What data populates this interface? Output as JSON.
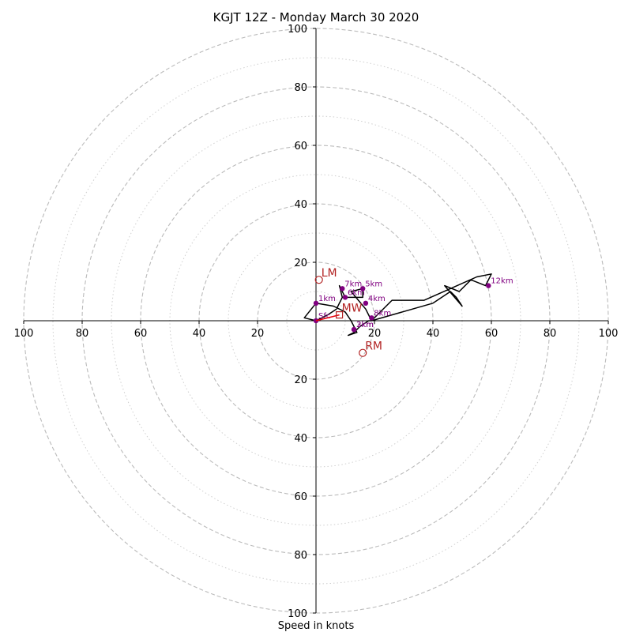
{
  "chart_data": {
    "type": "line",
    "title": "KGJT 12Z - Monday March 30 2020",
    "xlabel": "Speed in knots",
    "xlim": [
      -100,
      100
    ],
    "ylim": [
      -100,
      100
    ],
    "major_rings": [
      20,
      40,
      60,
      80,
      100
    ],
    "minor_rings": [
      10,
      30,
      50,
      70,
      90
    ],
    "tick_labels": {
      "x": [
        "100",
        "80",
        "60",
        "40",
        "20",
        "20",
        "40",
        "60",
        "80",
        "100"
      ],
      "y": [
        "100",
        "80",
        "60",
        "40",
        "20",
        "20",
        "40",
        "60",
        "80",
        "100"
      ]
    },
    "colors": {
      "hodograph": "#000000",
      "height_points": "#800080",
      "motion": "#b22222",
      "mean_wind_vector": "#e8000b",
      "grid": "#bbbbbb"
    },
    "hodograph": [
      [
        0,
        0
      ],
      [
        -4,
        1
      ],
      [
        0,
        6
      ],
      [
        6,
        5
      ],
      [
        10,
        3
      ],
      [
        12,
        0
      ],
      [
        14,
        -4
      ],
      [
        11,
        -5
      ],
      [
        13,
        -4
      ],
      [
        15,
        -2
      ],
      [
        18,
        0
      ],
      [
        19,
        0
      ],
      [
        22,
        3
      ],
      [
        26,
        7
      ],
      [
        33,
        7
      ],
      [
        37,
        7
      ],
      [
        46,
        11
      ],
      [
        55,
        15
      ],
      [
        60,
        16
      ],
      [
        58,
        12
      ],
      [
        53,
        14
      ],
      [
        49,
        10
      ],
      [
        44,
        12
      ],
      [
        50,
        5
      ],
      [
        48,
        8
      ],
      [
        46,
        10
      ],
      [
        40,
        6
      ],
      [
        19,
        0
      ],
      [
        17,
        4
      ],
      [
        12,
        10
      ],
      [
        16,
        11
      ],
      [
        16,
        8
      ],
      [
        10,
        8
      ],
      [
        8,
        12
      ],
      [
        9,
        8
      ],
      [
        7,
        4
      ],
      [
        4,
        2
      ],
      [
        2,
        1
      ],
      [
        0,
        0
      ]
    ],
    "height_points": [
      {
        "label": "Sfc",
        "x": 0,
        "y": 0
      },
      {
        "label": "1km",
        "x": 0,
        "y": 6
      },
      {
        "label": "2km",
        "x": 13,
        "y": -3
      },
      {
        "label": "3km",
        "x": 13,
        "y": -3
      },
      {
        "label": "4km",
        "x": 17,
        "y": 6
      },
      {
        "label": "5km",
        "x": 16,
        "y": 11
      },
      {
        "label": "6km",
        "x": 10,
        "y": 8
      },
      {
        "label": "7km",
        "x": 9,
        "y": 11
      },
      {
        "label": "8km",
        "x": 19,
        "y": 1
      },
      {
        "label": "12km",
        "x": 59,
        "y": 12
      }
    ],
    "storm_motion": [
      {
        "label": "LM",
        "x": 1,
        "y": 14
      },
      {
        "label": "RM",
        "x": 16,
        "y": -11
      },
      {
        "label": "MW",
        "x": 8,
        "y": 2
      }
    ],
    "mean_wind_vector": {
      "from": [
        0,
        0
      ],
      "to": [
        8,
        2
      ]
    }
  }
}
